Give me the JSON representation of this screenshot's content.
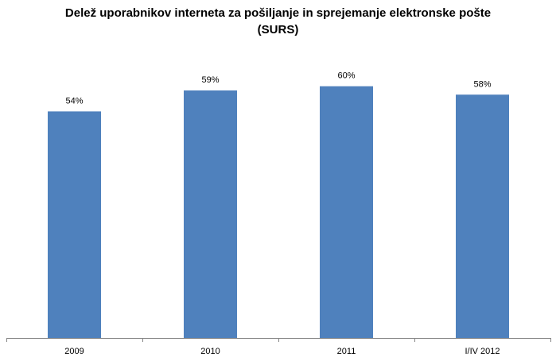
{
  "chart_data": {
    "type": "bar",
    "title": "Delež uporabnikov interneta za pošiljanje in sprejemanje elektronske pošte",
    "subtitle": "(SURS)",
    "categories": [
      "2009",
      "2010",
      "2011",
      "I/IV 2012"
    ],
    "values": [
      54,
      59,
      60,
      58
    ],
    "data_labels": [
      "54%",
      "59%",
      "60%",
      "58%"
    ],
    "ylim": [
      0,
      100
    ],
    "grid": false,
    "legend": "none",
    "bar_color": "#4F81BD",
    "axis_color": "#868686"
  }
}
